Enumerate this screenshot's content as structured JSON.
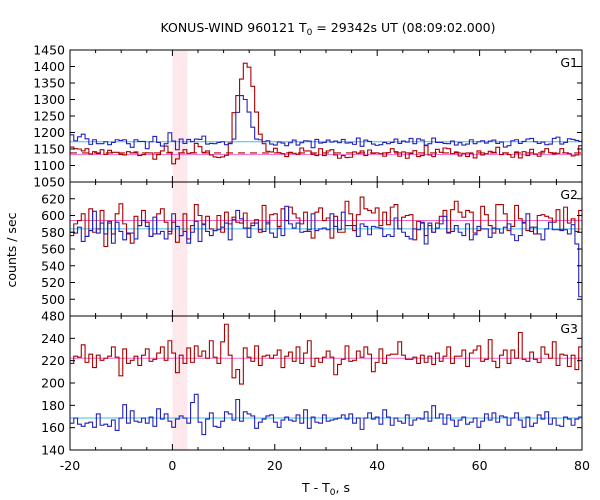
{
  "chart_data": {
    "type": "line",
    "title_main": "KONUS-WIND 960121 T",
    "title_sub": "0",
    "title_rest": " = 29342s UT (08:09:02.000)",
    "xlabel_main": "T - T",
    "xlabel_sub": "0",
    "xlabel_rest": ", s",
    "ylabel": "counts / sec",
    "xlim": [
      -20,
      80
    ],
    "xticks": [
      "-20",
      "0",
      "20",
      "40",
      "60",
      "80"
    ],
    "highlight_interval": [
      0.0,
      2.944
    ],
    "colors": {
      "series_a": "#aa0000",
      "series_b": "#2222bb",
      "level_a": "#ee66cc",
      "level_b": "#44bbee",
      "background_a": "#aa0000",
      "highlight": "#fde8ec"
    },
    "panels": [
      {
        "name": "G1",
        "ylim": [
          1050,
          1450
        ],
        "yticks": [
          "1050",
          "1100",
          "1150",
          "1200",
          "1250",
          "1300",
          "1350",
          "1400",
          "1450"
        ],
        "level_a": 1133,
        "level_b": 1172,
        "background_a": 1138,
        "series": [
          {
            "name": "a",
            "x_start": -20,
            "bin": 0.736,
            "values": [
              1156,
              1151,
              1150,
              1144,
              1151,
              1135,
              1142,
              1136,
              1148,
              1134,
              1146,
              1140,
              1140,
              1134,
              1132,
              1142,
              1138,
              1141,
              1130,
              1133,
              1138,
              1138,
              1119,
              1133,
              1144,
              1159,
              1140,
              1105,
              1120,
              1138,
              1148,
              1137,
              1139,
              1167,
              1157,
              1140,
              1144,
              1132,
              1126,
              1124,
              1126,
              1131,
              1168,
              1260,
              1312,
              1362,
              1410,
              1398,
              1340,
              1262,
              1195,
              1166,
              1143,
              1141,
              1152,
              1139,
              1136,
              1127,
              1140,
              1137,
              1134,
              1153,
              1144,
              1144,
              1134,
              1130,
              1151,
              1130,
              1144,
              1148,
              1132,
              1122,
              1130,
              1124,
              1125,
              1141,
              1137,
              1144,
              1130,
              1147,
              1137,
              1138,
              1136,
              1128,
              1139,
              1151,
              1142,
              1128,
              1141,
              1122,
              1136,
              1145,
              1127,
              1130,
              1160,
              1132,
              1127,
              1149,
              1140,
              1153,
              1151,
              1136,
              1141,
              1129,
              1137,
              1127,
              1137,
              1123,
              1144,
              1132,
              1136,
              1143,
              1140,
              1155,
              1133,
              1138,
              1133,
              1125,
              1141,
              1123,
              1142,
              1130,
              1149,
              1135,
              1128,
              1143,
              1151,
              1139,
              1135,
              1137,
              1151,
              1138,
              1136,
              1129,
              1132,
              1160
            ]
          },
          {
            "name": "b",
            "x_start": -20,
            "bin": 0.736,
            "values": [
              1193,
              1175,
              1187,
              1195,
              1181,
              1164,
              1178,
              1166,
              1166,
              1172,
              1163,
              1170,
              1178,
              1176,
              1178,
              1166,
              1155,
              1178,
              1173,
              1173,
              1151,
              1172,
              1188,
              1170,
              1159,
              1166,
              1199,
              1174,
              1148,
              1180,
              1167,
              1179,
              1172,
              1180,
              1179,
              1189,
              1165,
              1167,
              1166,
              1170,
              1172,
              1163,
              1166,
              1180,
              1261,
              1312,
              1300,
              1262,
              1216,
              1180,
              1178,
              1172,
              1175,
              1165,
              1162,
              1171,
              1168,
              1160,
              1169,
              1177,
              1162,
              1169,
              1175,
              1174,
              1154,
              1179,
              1168,
              1170,
              1177,
              1171,
              1174,
              1169,
              1179,
              1168,
              1169,
              1164,
              1183,
              1158,
              1177,
              1173,
              1165,
              1161,
              1163,
              1170,
              1166,
              1170,
              1180,
              1167,
              1174,
              1171,
              1182,
              1166,
              1181,
              1177,
              1162,
              1166,
              1183,
              1170,
              1170,
              1167,
              1166,
              1174,
              1162,
              1169,
              1162,
              1165,
              1178,
              1166,
              1172,
              1175,
              1168,
              1174,
              1177,
              1167,
              1171,
              1156,
              1160,
              1175,
              1178,
              1167,
              1173,
              1180,
              1182,
              1172,
              1167,
              1171,
              1163,
              1165,
              1182,
              1186,
              1165,
              1170,
              1181,
              1179,
              1176,
              1173
            ]
          }
        ]
      },
      {
        "name": "G2",
        "ylim": [
          480,
          640
        ],
        "yticks": [
          "480",
          "500",
          "520",
          "540",
          "560",
          "580",
          "600",
          "620",
          "640"
        ],
        "level_a": 594,
        "level_b": 584,
        "series": [
          {
            "name": "a",
            "x_start": -20,
            "bin": 0.736,
            "values": [
              576,
              590,
              594,
              602,
              575,
              608,
              580,
              584,
              606,
              563,
              593,
              578,
              602,
              614,
              590,
              578,
              567,
              599,
              588,
              606,
              592,
              575,
              578,
              602,
              608,
              592,
              578,
              592,
              568,
              576,
              602,
              572,
              588,
              613,
              600,
              590,
              599,
              584,
              582,
              600,
              580,
              604,
              590,
              598,
              592,
              591,
              603,
              585,
              591,
              595,
              580,
              612,
              590,
              601,
              602,
              587,
              608,
              594,
              610,
              602,
              597,
              590,
              604,
              581,
              573,
              604,
              609,
              594,
              597,
              573,
              599,
              580,
              580,
              617,
              602,
              582,
              601,
              622,
              608,
              606,
              603,
              609,
              588,
              604,
              589,
              610,
              613,
              584,
              598,
              600,
              601,
              571,
              593,
              591,
              576,
              588,
              580,
              591,
              599,
              606,
              579,
              607,
              617,
              604,
              598,
              606,
              604,
              579,
              582,
              611,
              601,
              588,
              579,
              613,
              613,
              602,
              582,
              587,
              612,
              596,
              591,
              582,
              586,
              578,
              600,
              601,
              599,
              597,
              592,
              607,
              583,
              610,
              591,
              596,
              581,
              606
            ]
          },
          {
            "name": "b",
            "x_start": -20,
            "bin": 0.736,
            "values": [
              580,
              579,
              586,
              569,
              575,
              582,
              605,
              579,
              591,
              578,
              591,
              567,
              592,
              581,
              571,
              579,
              579,
              572,
              588,
              594,
              587,
              575,
              598,
              578,
              581,
              572,
              581,
              602,
              587,
              576,
              581,
              567,
              580,
              593,
              569,
              589,
              581,
              576,
              582,
              583,
              586,
              591,
              571,
              595,
              606,
              596,
              585,
              574,
              588,
              591,
              583,
              581,
              592,
              579,
              574,
              585,
              576,
              611,
              590,
              585,
              591,
              580,
              581,
              583,
              602,
              582,
              584,
              585,
              583,
              602,
              587,
              583,
              604,
              588,
              588,
              588,
              575,
              590,
              587,
              577,
              587,
              586,
              585,
              575,
              577,
              575,
              597,
              584,
              580,
              575,
              572,
              584,
              583,
              592,
              566,
              591,
              580,
              585,
              590,
              599,
              580,
              581,
              588,
              580,
              576,
              590,
              571,
              577,
              587,
              584,
              584,
              574,
              585,
              584,
              579,
              586,
              590,
              577,
              570,
              576,
              592,
              602,
              581,
              586,
              578,
              571,
              584,
              592,
              583,
              583,
              582,
              583,
              578,
              589,
              566,
              503
            ]
          }
        ]
      },
      {
        "name": "G3",
        "ylim": [
          140,
          270
        ],
        "yticks": [
          "140",
          "160",
          "180",
          "200",
          "220",
          "240",
          "260"
        ],
        "level_a": 229,
        "level_b": 171,
        "series": [
          {
            "name": "a",
            "x_start": -20,
            "bin": 0.736,
            "values": [
              224,
              231,
              230,
              242,
              225,
              233,
              220,
              232,
              227,
              229,
              231,
              240,
              230,
              212,
              238,
              224,
              227,
              231,
              222,
              232,
              238,
              226,
              228,
              234,
              240,
              227,
              246,
              234,
              215,
              232,
              224,
              239,
              225,
              241,
              231,
              236,
              229,
              246,
              230,
              224,
              245,
              262,
              232,
              210,
              218,
              204,
              239,
              230,
              226,
              241,
              222,
              231,
              232,
              229,
              232,
              237,
              220,
              231,
              235,
              226,
              240,
              224,
              234,
              246,
              221,
              229,
              225,
              230,
              236,
              230,
              213,
              223,
              228,
              241,
              226,
              227,
              236,
              230,
              240,
              233,
              216,
              225,
              238,
              224,
              232,
              233,
              233,
              245,
              232,
              228,
              228,
              230,
              224,
              232,
              225,
              231,
              223,
              234,
              226,
              231,
              240,
              224,
              231,
              231,
              237,
              221,
              234,
              237,
              241,
              226,
              228,
              247,
              226,
              220,
              232,
              237,
              224,
              237,
              229,
              254,
              228,
              226,
              235,
              228,
              225,
              240,
              233,
              229,
              245,
              222,
              233,
              232,
              221,
              232,
              218,
              240
            ]
          },
          {
            "name": "b",
            "x_start": -20,
            "bin": 0.736,
            "values": [
              166,
              171,
              165,
              163,
              166,
              167,
              162,
              175,
              164,
              165,
              163,
              169,
              159,
              171,
              184,
              166,
              178,
              168,
              167,
              171,
              166,
              172,
              163,
              180,
              170,
              175,
              168,
              162,
              170,
              173,
              171,
              166,
              186,
              194,
              167,
              155,
              170,
              176,
              163,
              162,
              168,
              177,
              175,
              169,
              189,
              168,
              177,
              175,
              173,
              161,
              167,
              170,
              173,
              174,
              167,
              162,
              169,
              172,
              169,
              168,
              174,
              166,
              179,
              161,
              172,
              167,
              166,
              174,
              168,
              169,
              170,
              171,
              174,
              170,
              175,
              166,
              171,
              160,
              171,
              176,
              170,
              172,
              165,
              179,
              172,
              164,
              171,
              168,
              166,
              174,
              164,
              169,
              171,
              170,
              177,
              168,
              183,
              171,
              175,
              165,
              174,
              169,
              163,
              169,
              172,
              165,
              167,
              171,
              162,
              168,
              175,
              169,
              176,
              167,
              173,
              172,
              164,
              171,
              176,
              169,
              162,
              172,
              163,
              166,
              174,
              170,
              177,
              165,
              171,
              164,
              163,
              172,
              170,
              164,
              170,
              172
            ]
          }
        ]
      }
    ]
  }
}
